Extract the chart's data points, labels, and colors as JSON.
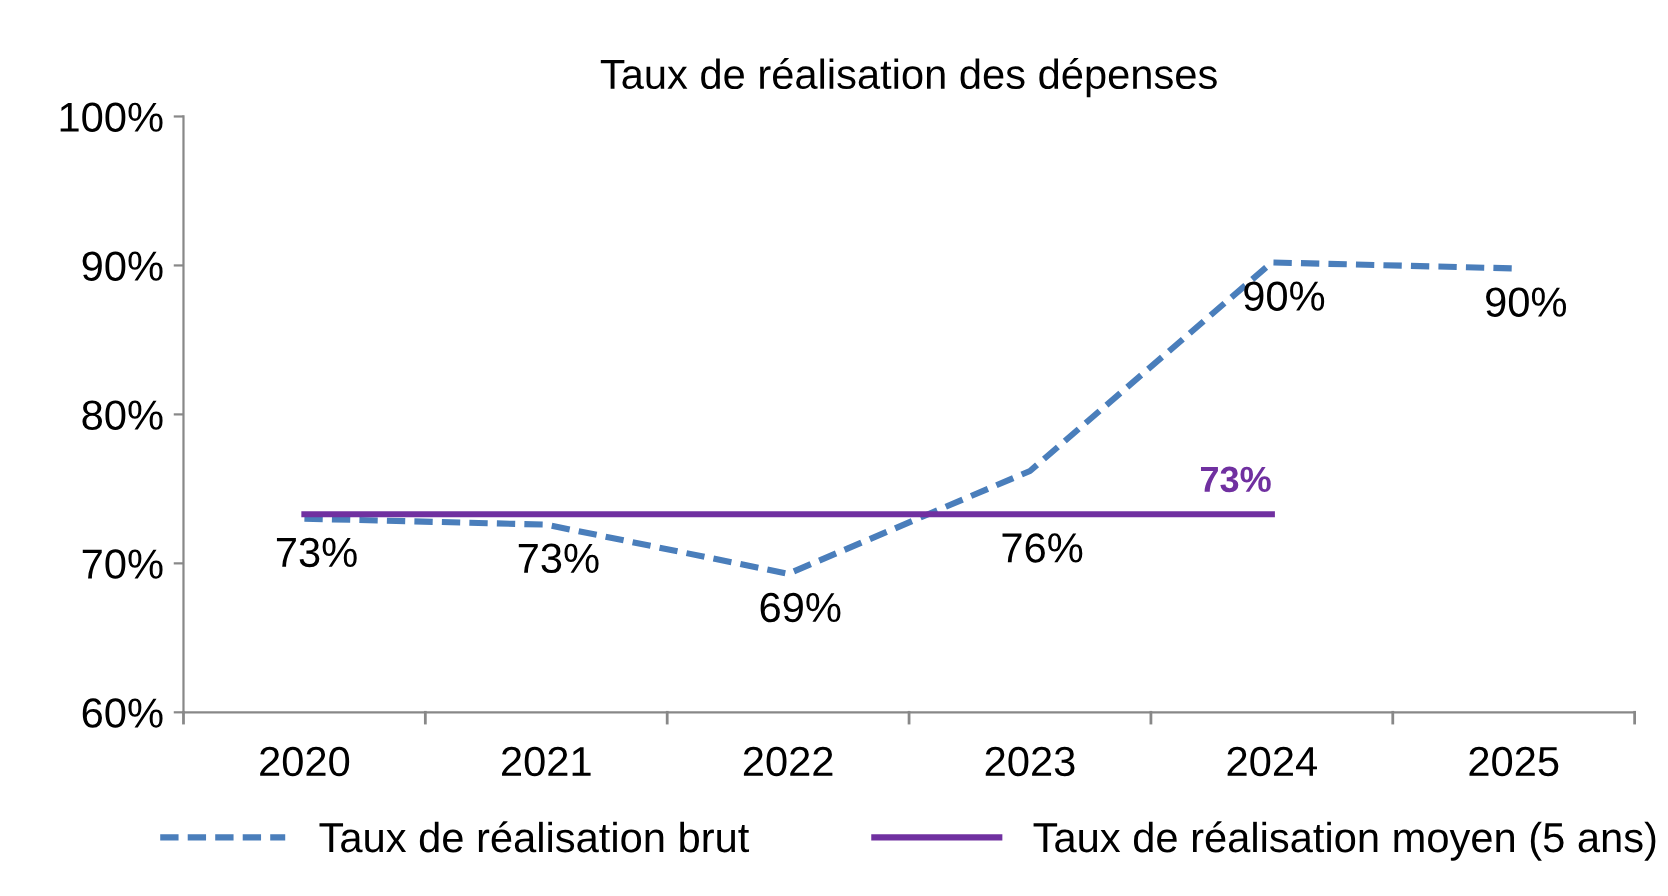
{
  "chart_data": {
    "type": "line",
    "title": "Taux de réalisation des dépenses",
    "categories": [
      "2020",
      "2021",
      "2022",
      "2023",
      "2024",
      "2025"
    ],
    "series": [
      {
        "name": "Taux de réalisation brut",
        "color": "#4a7ebb",
        "line_style": "dashed",
        "values": [
          73.0,
          72.6,
          69.3,
          76.2,
          90.2,
          89.8
        ],
        "value_labels": [
          "73%",
          "73%",
          "69%",
          "76%",
          "90%",
          "90%"
        ]
      },
      {
        "name": "Taux de réalisation moyen (5 ans)",
        "color": "#7030a0",
        "line_style": "solid",
        "values": [
          73.3,
          73.3,
          73.3,
          73.3,
          73.3,
          null
        ],
        "value_labels": [
          null,
          null,
          null,
          null,
          "73%",
          null
        ]
      }
    ],
    "ylim": [
      60,
      100
    ],
    "yticks": [
      {
        "value": 60,
        "label": "60%"
      },
      {
        "value": 70,
        "label": "70%"
      },
      {
        "value": 80,
        "label": "80%"
      },
      {
        "value": 90,
        "label": "90%"
      },
      {
        "value": 100,
        "label": "100%"
      }
    ],
    "grid": false,
    "legend": "bottom",
    "marker": "none"
  }
}
